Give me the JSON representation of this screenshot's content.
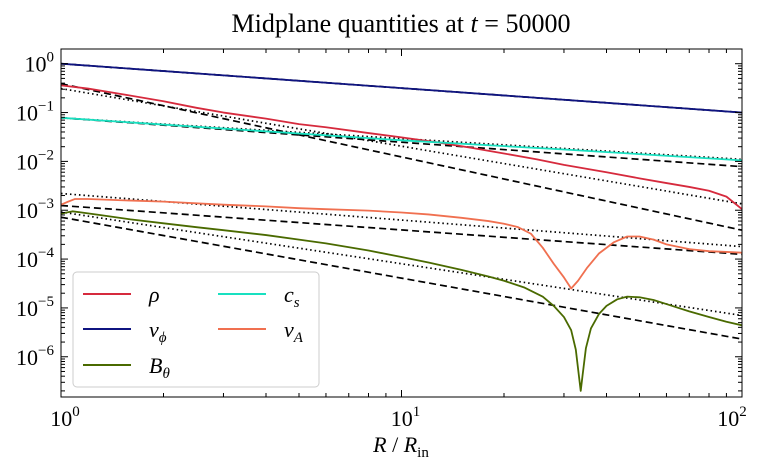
{
  "chart_data": {
    "type": "line",
    "title": "Midplane quantities at t = 50000",
    "title_text": "Midplane quantities at",
    "title_var": "t",
    "title_eq": " = 50000",
    "xscale": "log",
    "yscale": "log",
    "xlim": [
      1,
      100
    ],
    "ylim": [
      1.5e-07,
      2.0
    ],
    "xlabel": {
      "main": "R",
      "sep": " / ",
      "base": "R",
      "sub": "in"
    },
    "ylabel": "",
    "x_ticks": [
      {
        "value": 1,
        "base": "10",
        "exp": "0"
      },
      {
        "value": 10,
        "base": "10",
        "exp": "1"
      },
      {
        "value": 100,
        "base": "10",
        "exp": "2"
      }
    ],
    "y_ticks": [
      {
        "value": 1,
        "base": "10",
        "exp": "0"
      },
      {
        "value": 0.1,
        "base": "10",
        "exp": "−1"
      },
      {
        "value": 0.01,
        "base": "10",
        "exp": "−2"
      },
      {
        "value": 0.001,
        "base": "10",
        "exp": "−3"
      },
      {
        "value": 0.0001,
        "base": "10",
        "exp": "−4"
      },
      {
        "value": 1e-05,
        "base": "10",
        "exp": "−5"
      },
      {
        "value": 1e-06,
        "base": "10",
        "exp": "−6"
      }
    ],
    "legend_position": "lower-left",
    "series": [
      {
        "name": "rho",
        "label": "ρ",
        "sub": "",
        "color": "#d62a3d",
        "width": 1.8,
        "points": [
          [
            1,
            0.36
          ],
          [
            1.2,
            0.31
          ],
          [
            1.5,
            0.24
          ],
          [
            2,
            0.17
          ],
          [
            2.5,
            0.125
          ],
          [
            3,
            0.1
          ],
          [
            4,
            0.075
          ],
          [
            5,
            0.058
          ],
          [
            6,
            0.05
          ],
          [
            8,
            0.038
          ],
          [
            10,
            0.031
          ],
          [
            13,
            0.024
          ],
          [
            16,
            0.019
          ],
          [
            20,
            0.0145
          ],
          [
            25,
            0.011
          ],
          [
            30,
            0.0085
          ],
          [
            40,
            0.006
          ],
          [
            50,
            0.0045
          ],
          [
            60,
            0.0036
          ],
          [
            70,
            0.003
          ],
          [
            80,
            0.0025
          ],
          [
            90,
            0.0019
          ],
          [
            100,
            0.00105
          ]
        ]
      },
      {
        "name": "v_phi",
        "label": "v",
        "sub": "ϕ",
        "color": "#0f1480",
        "width": 1.8,
        "points": [
          [
            1,
            1.0
          ],
          [
            100,
            0.1
          ]
        ]
      },
      {
        "name": "B_theta",
        "label": "B",
        "sub": "θ",
        "color": "#4a6a00",
        "width": 1.8,
        "points": [
          [
            1,
            0.00085
          ],
          [
            1.08,
            0.00095
          ],
          [
            1.15,
            0.0009
          ],
          [
            1.3,
            0.0008
          ],
          [
            1.6,
            0.00065
          ],
          [
            2,
            0.00054
          ],
          [
            2.5,
            0.00045
          ],
          [
            3,
            0.00039
          ],
          [
            4,
            0.00031
          ],
          [
            5,
            0.00025
          ],
          [
            6,
            0.00021
          ],
          [
            8,
            0.00015
          ],
          [
            10,
            0.00011
          ],
          [
            12,
            8.5e-05
          ],
          [
            15,
            6e-05
          ],
          [
            18,
            4.4e-05
          ],
          [
            20,
            3.6e-05
          ],
          [
            23,
            2.6e-05
          ],
          [
            26,
            1.7e-05
          ],
          [
            28,
            1.1e-05
          ],
          [
            30,
            6.5e-06
          ],
          [
            31.5,
            3.5e-06
          ],
          [
            32.5,
            1.4e-06
          ],
          [
            33.2,
            4e-07
          ],
          [
            33.6,
            2e-07
          ],
          [
            34.0,
            4e-07
          ],
          [
            34.8,
            1.5e-06
          ],
          [
            36,
            3.8e-06
          ],
          [
            38,
            7.5e-06
          ],
          [
            40,
            1.1e-05
          ],
          [
            43,
            1.5e-05
          ],
          [
            46,
            1.7e-05
          ],
          [
            50,
            1.65e-05
          ],
          [
            55,
            1.45e-05
          ],
          [
            60,
            1.2e-05
          ],
          [
            70,
            8.5e-06
          ],
          [
            80,
            6.5e-06
          ],
          [
            90,
            5.2e-06
          ],
          [
            100,
            4.4e-06
          ]
        ]
      },
      {
        "name": "c_s",
        "label": "c",
        "sub": "s",
        "color": "#18e0c0",
        "width": 1.8,
        "points": [
          [
            1,
            0.078
          ],
          [
            3,
            0.047
          ],
          [
            10,
            0.027
          ],
          [
            30,
            0.0175
          ],
          [
            100,
            0.0105
          ]
        ]
      },
      {
        "name": "v_A",
        "label": "v",
        "sub": "A",
        "color": "#f07050",
        "width": 1.8,
        "points": [
          [
            1,
            0.0013
          ],
          [
            1.05,
            0.0015
          ],
          [
            1.1,
            0.0017
          ],
          [
            1.2,
            0.0017
          ],
          [
            1.5,
            0.0016
          ],
          [
            2,
            0.0015
          ],
          [
            3,
            0.0013
          ],
          [
            4,
            0.0012
          ],
          [
            5,
            0.0011
          ],
          [
            6,
            0.00105
          ],
          [
            8,
            0.00098
          ],
          [
            10,
            0.0009
          ],
          [
            12,
            0.00082
          ],
          [
            15,
            0.0007
          ],
          [
            18,
            0.0006
          ],
          [
            20,
            0.00053
          ],
          [
            22,
            0.00045
          ],
          [
            24,
            0.00033
          ],
          [
            26,
            0.00017
          ],
          [
            28,
            8e-05
          ],
          [
            30,
            4.2e-05
          ],
          [
            31.5,
            2.5e-05
          ],
          [
            33,
            3.6e-05
          ],
          [
            35,
            6.5e-05
          ],
          [
            38,
            0.00013
          ],
          [
            42,
            0.00022
          ],
          [
            46,
            0.00029
          ],
          [
            50,
            0.00029
          ],
          [
            55,
            0.00025
          ],
          [
            60,
            0.0002
          ],
          [
            70,
            0.00016
          ],
          [
            80,
            0.000145
          ],
          [
            90,
            0.00014
          ],
          [
            100,
            0.000135
          ]
        ]
      }
    ],
    "reference_lines": [
      {
        "style": "dashed",
        "from": [
          1,
          1.0
        ],
        "to": [
          100,
          0.1
        ]
      },
      {
        "style": "dashed",
        "from": [
          1,
          0.39
        ],
        "to": [
          100,
          0.00039
        ]
      },
      {
        "style": "dashed",
        "from": [
          1,
          0.078
        ],
        "to": [
          100,
          0.0078
        ]
      },
      {
        "style": "dashed",
        "from": [
          1,
          0.00125
        ],
        "to": [
          100,
          0.000125
        ]
      },
      {
        "style": "dashed",
        "from": [
          1,
          0.00072
        ],
        "to": [
          100,
          2.3e-06
        ]
      },
      {
        "style": "dotted",
        "from": [
          1,
          1.0
        ],
        "to": [
          100,
          0.1
        ]
      },
      {
        "style": "dotted",
        "from": [
          1,
          0.31
        ],
        "to": [
          100,
          0.00135
        ]
      },
      {
        "style": "dotted",
        "from": [
          1,
          0.078
        ],
        "to": [
          100,
          0.011
        ]
      },
      {
        "style": "dotted",
        "from": [
          1,
          0.0022
        ],
        "to": [
          100,
          0.00018
        ]
      },
      {
        "style": "dotted",
        "from": [
          1,
          0.00092
        ],
        "to": [
          100,
          7e-06
        ]
      }
    ]
  }
}
